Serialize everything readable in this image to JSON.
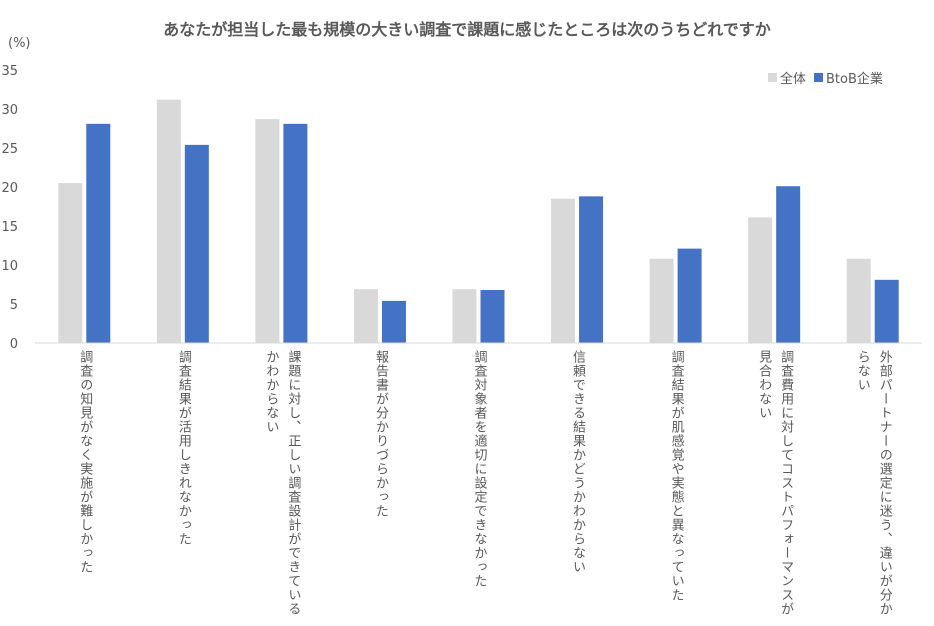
{
  "chart_data": {
    "type": "bar",
    "title": "あなたが担当した最も規模の大きい調査で課題に感じたところは次のうちどれですか",
    "unit": "(%)",
    "ylim": [
      0,
      35
    ],
    "yticks": [
      "0",
      "5",
      "10",
      "15",
      "20",
      "25",
      "30",
      "35"
    ],
    "grid": false,
    "legend_position": "top-right",
    "categories": [
      "調査の知見がなく実施が難しかった",
      "調査結果が活用しきれなかった",
      "課題に対し、正しい調査設計ができているかわからない",
      "報告書が分かりづらかった",
      "調査対象者を適切に設定できなかった",
      "信頼できる結果かどうかわからない",
      "調査結果が肌感覚や実態と異なっていた",
      "調査費用に対してコストパフォーマンスが見合わない",
      "外部パートナーの選定に迷う、違いが分からない"
    ],
    "category_lines": [
      [
        "調査の知見がなく実施が難しかった"
      ],
      [
        "調査結果が活用しきれなかった"
      ],
      [
        "課題に対し、正しい調査設計ができている",
        "かわからない"
      ],
      [
        "報告書が分かりづらかった"
      ],
      [
        "調査対象者を適切に設定できなかった"
      ],
      [
        "信頼できる結果かどうかわからない"
      ],
      [
        "調査結果が肌感覚や実態と異なっていた"
      ],
      [
        "調査費用に対してコストパフォーマンスが",
        "見合わない"
      ],
      [
        "外部パートナーの選定に迷う、違いが分か",
        "らない"
      ]
    ],
    "series": [
      {
        "name": "全体",
        "color": "#d9d9d9",
        "values": [
          20.5,
          31.2,
          28.7,
          6.9,
          6.9,
          18.5,
          10.8,
          16.1,
          10.8
        ]
      },
      {
        "name": "BtoB企業",
        "color": "#4472c4",
        "values": [
          28.1,
          25.4,
          28.1,
          5.4,
          6.8,
          18.8,
          12.1,
          20.1,
          8.1
        ]
      }
    ]
  }
}
